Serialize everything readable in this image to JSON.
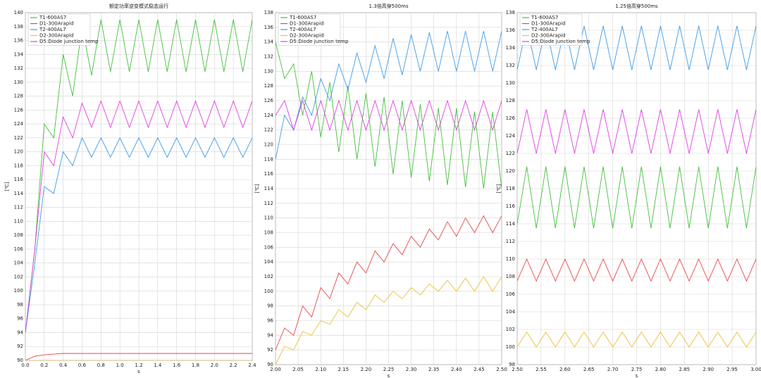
{
  "chart_data": [
    {
      "type": "line",
      "title": "额定功率逆变模式稳态运行",
      "x_label": "s",
      "y_label": "[℃]",
      "grid": true,
      "legend": "upper left",
      "xlim": [
        0,
        2.4
      ],
      "ylim": [
        90,
        140
      ],
      "xticks": [
        {
          "value": 0,
          "label": "0.0"
        },
        0.2,
        0.4,
        0.6,
        0.8,
        {
          "value": 1,
          "label": "1.0"
        },
        1.2,
        1.4,
        1.6,
        1.8,
        {
          "value": 2,
          "label": "2.0"
        },
        2.2,
        2.4
      ],
      "yticks": [
        90,
        92,
        94,
        96,
        98,
        100,
        102,
        104,
        106,
        108,
        110,
        112,
        114,
        116,
        118,
        120,
        122,
        124,
        126,
        128,
        130,
        132,
        134,
        136,
        138,
        140
      ],
      "x": [
        0,
        0.1,
        0.2,
        0.3,
        0.4,
        0.5,
        0.6,
        0.7,
        0.8,
        0.9,
        1.0,
        1.1,
        1.2,
        1.3,
        1.4,
        1.5,
        1.6,
        1.7,
        1.8,
        1.9,
        2.0,
        2.1,
        2.2,
        2.3,
        2.4
      ],
      "series": [
        {
          "name": "T1-600AS7",
          "color": "#44c03c",
          "values": [
            94,
            106,
            124,
            122,
            134,
            128,
            138,
            131,
            139,
            131.5,
            139,
            131.5,
            139,
            131.5,
            139,
            131.5,
            139,
            131.5,
            139,
            131.5,
            139,
            131.5,
            139,
            131.5,
            139
          ]
        },
        {
          "name": "D1-300Arapid",
          "color": "#e8474a",
          "values": [
            90,
            90.6,
            90.8,
            90.9,
            91,
            91,
            91,
            91,
            91,
            91,
            91,
            91,
            91,
            91,
            91,
            91,
            91,
            91,
            91,
            91,
            91,
            91,
            91,
            91,
            91
          ]
        },
        {
          "name": "T2-400AL7",
          "color": "#3f9be8",
          "values": [
            94,
            104,
            115,
            114,
            120,
            118,
            122,
            119.2,
            122,
            119.2,
            122,
            119.2,
            122,
            119.2,
            122,
            119.2,
            122,
            119.2,
            122,
            119.2,
            122,
            119.2,
            122,
            119.2,
            122
          ]
        },
        {
          "name": "D2-300Arapid",
          "color": "#e8c23a",
          "values": [
            90,
            90,
            90,
            90,
            90,
            90,
            90,
            90,
            90,
            90,
            90,
            90,
            90,
            90,
            90,
            90,
            90,
            90,
            90,
            90,
            90,
            90,
            90,
            90,
            90
          ]
        },
        {
          "name": "D5:Diode junction temp",
          "color": "#e040e0",
          "values": [
            94,
            106,
            120,
            118,
            125,
            122,
            127,
            123.5,
            127.3,
            123.5,
            127.3,
            123.5,
            127.3,
            123.5,
            127.3,
            123.5,
            127.3,
            123.5,
            127.3,
            123.5,
            127.3,
            123.5,
            127.3,
            123.5,
            127.3
          ]
        }
      ]
    },
    {
      "type": "line",
      "title": "1.3倍高穿500ms",
      "x_label": "s",
      "y_label": "[℃]",
      "grid": true,
      "legend": "upper left",
      "xlim": [
        2.0,
        2.5
      ],
      "ylim": [
        90,
        138
      ],
      "xticks": [
        {
          "value": 2,
          "label": "2.00"
        },
        2.05,
        {
          "value": 2.1,
          "label": "2.10"
        },
        2.15,
        {
          "value": 2.2,
          "label": "2.20"
        },
        2.25,
        {
          "value": 2.3,
          "label": "2.30"
        },
        2.35,
        {
          "value": 2.4,
          "label": "2.40"
        },
        2.45,
        {
          "value": 2.5,
          "label": "2.50"
        }
      ],
      "yticks": [
        90,
        92,
        94,
        96,
        98,
        100,
        102,
        104,
        106,
        108,
        110,
        112,
        114,
        116,
        118,
        120,
        122,
        124,
        126,
        128,
        130,
        132,
        134,
        136,
        138
      ],
      "x": [
        2.0,
        2.02,
        2.04,
        2.06,
        2.08,
        2.1,
        2.12,
        2.14,
        2.16,
        2.18,
        2.2,
        2.22,
        2.24,
        2.26,
        2.28,
        2.3,
        2.32,
        2.34,
        2.36,
        2.38,
        2.4,
        2.42,
        2.44,
        2.46,
        2.48,
        2.5
      ],
      "series": [
        {
          "name": "T1-600AS7",
          "color": "#44c03c",
          "values": [
            134,
            129,
            131,
            124,
            130,
            121,
            128.5,
            119,
            128,
            118,
            127,
            117,
            126.5,
            116,
            126,
            115.5,
            125.5,
            115,
            125,
            114.5,
            125,
            114.2,
            124.5,
            114,
            124.5,
            114
          ]
        },
        {
          "name": "D1-300Arapid",
          "color": "#e8474a",
          "values": [
            92,
            95,
            94,
            98,
            96.5,
            100.5,
            99,
            102.5,
            101,
            104,
            102.5,
            105.5,
            104,
            106.5,
            105,
            107.5,
            106,
            108.5,
            107,
            109.5,
            107.5,
            110,
            108,
            110.3,
            108,
            110.3
          ]
        },
        {
          "name": "T2-400AL7",
          "color": "#3f9be8",
          "values": [
            118,
            124,
            122,
            126.5,
            124,
            129,
            126,
            131,
            127.5,
            132.5,
            128.5,
            133.5,
            129,
            134.5,
            129.5,
            135,
            130,
            135.3,
            130,
            135.5,
            130,
            135.5,
            130,
            135.5,
            130,
            135.5
          ]
        },
        {
          "name": "D2-300Arapid",
          "color": "#e8c23a",
          "values": [
            90,
            92.5,
            92,
            94.5,
            94,
            96,
            95.5,
            97.5,
            96.5,
            98.5,
            97.5,
            99.5,
            98.5,
            100,
            99,
            100.5,
            99.5,
            101,
            100,
            101.5,
            100,
            101.8,
            100,
            102,
            100,
            102
          ]
        },
        {
          "name": "D5:Diode junction temp",
          "color": "#e040e0",
          "values": [
            124,
            126,
            122,
            126,
            122,
            126,
            122,
            126,
            122,
            126,
            122,
            126,
            122,
            126,
            122,
            126,
            122,
            126,
            122,
            126,
            122,
            126,
            122,
            126,
            122,
            126
          ]
        }
      ]
    },
    {
      "type": "line",
      "title": "1.25倍高穿500ms",
      "x_label": "s",
      "y_label": "[℃]",
      "grid": true,
      "legend": "upper left",
      "xlim": [
        2.5,
        3.0
      ],
      "ylim": [
        98,
        138
      ],
      "xticks": [
        {
          "value": 2.5,
          "label": "2.50"
        },
        2.55,
        {
          "value": 2.6,
          "label": "2.60"
        },
        2.65,
        {
          "value": 2.7,
          "label": "2.70"
        },
        2.75,
        {
          "value": 2.8,
          "label": "2.80"
        },
        2.85,
        {
          "value": 2.9,
          "label": "2.90"
        },
        2.95,
        {
          "value": 3,
          "label": "3.00"
        }
      ],
      "yticks": [
        98,
        100,
        102,
        104,
        106,
        108,
        110,
        112,
        114,
        116,
        118,
        120,
        122,
        124,
        126,
        128,
        130,
        132,
        134,
        136,
        138
      ],
      "x": [
        2.5,
        2.52,
        2.54,
        2.56,
        2.58,
        2.6,
        2.62,
        2.64,
        2.66,
        2.68,
        2.7,
        2.72,
        2.74,
        2.76,
        2.78,
        2.8,
        2.82,
        2.84,
        2.86,
        2.88,
        2.9,
        2.92,
        2.94,
        2.96,
        2.98,
        3.0
      ],
      "series": [
        {
          "name": "T1-600AS7",
          "color": "#44c03c",
          "values": [
            114,
            120.5,
            113.5,
            120.5,
            113.5,
            120.5,
            113.5,
            120.5,
            113.5,
            120.5,
            113.5,
            120.5,
            113.5,
            120.5,
            113.5,
            120.5,
            113.5,
            120.5,
            113.5,
            120.5,
            113.5,
            120.5,
            113.5,
            120.5,
            113.5,
            120.5
          ]
        },
        {
          "name": "D1-300Arapid",
          "color": "#e8474a",
          "values": [
            107.5,
            110,
            107.5,
            110,
            107.5,
            110,
            107.5,
            110,
            107.5,
            110,
            107.5,
            110,
            107.5,
            110,
            107.5,
            110,
            107.5,
            110,
            107.5,
            110,
            107.5,
            110,
            107.5,
            110,
            107.5,
            110
          ]
        },
        {
          "name": "T2-400AL7",
          "color": "#3f9be8",
          "values": [
            131.5,
            136.5,
            131.5,
            136.5,
            131.5,
            136.5,
            131.5,
            136.5,
            131.5,
            136.5,
            131.5,
            136.5,
            131.5,
            136.5,
            131.5,
            136.5,
            131.5,
            136.5,
            131.5,
            136.5,
            131.5,
            136.5,
            131.5,
            136.5,
            131.5,
            136.5
          ]
        },
        {
          "name": "D2-300Arapid",
          "color": "#e8c23a",
          "values": [
            100,
            101.7,
            100,
            101.7,
            100,
            101.7,
            100,
            101.7,
            100,
            101.7,
            100,
            101.7,
            100,
            101.7,
            100,
            101.7,
            100,
            101.7,
            100,
            101.7,
            100,
            101.7,
            100,
            101.7,
            100,
            101.7
          ]
        },
        {
          "name": "D5:Diode junction temp",
          "color": "#e040e0",
          "values": [
            122,
            127,
            122,
            127,
            122,
            127,
            122,
            127,
            122,
            127,
            122,
            127,
            122,
            127,
            122,
            127,
            122,
            127,
            122,
            127,
            122,
            127,
            122,
            127,
            122,
            127
          ]
        }
      ]
    }
  ]
}
